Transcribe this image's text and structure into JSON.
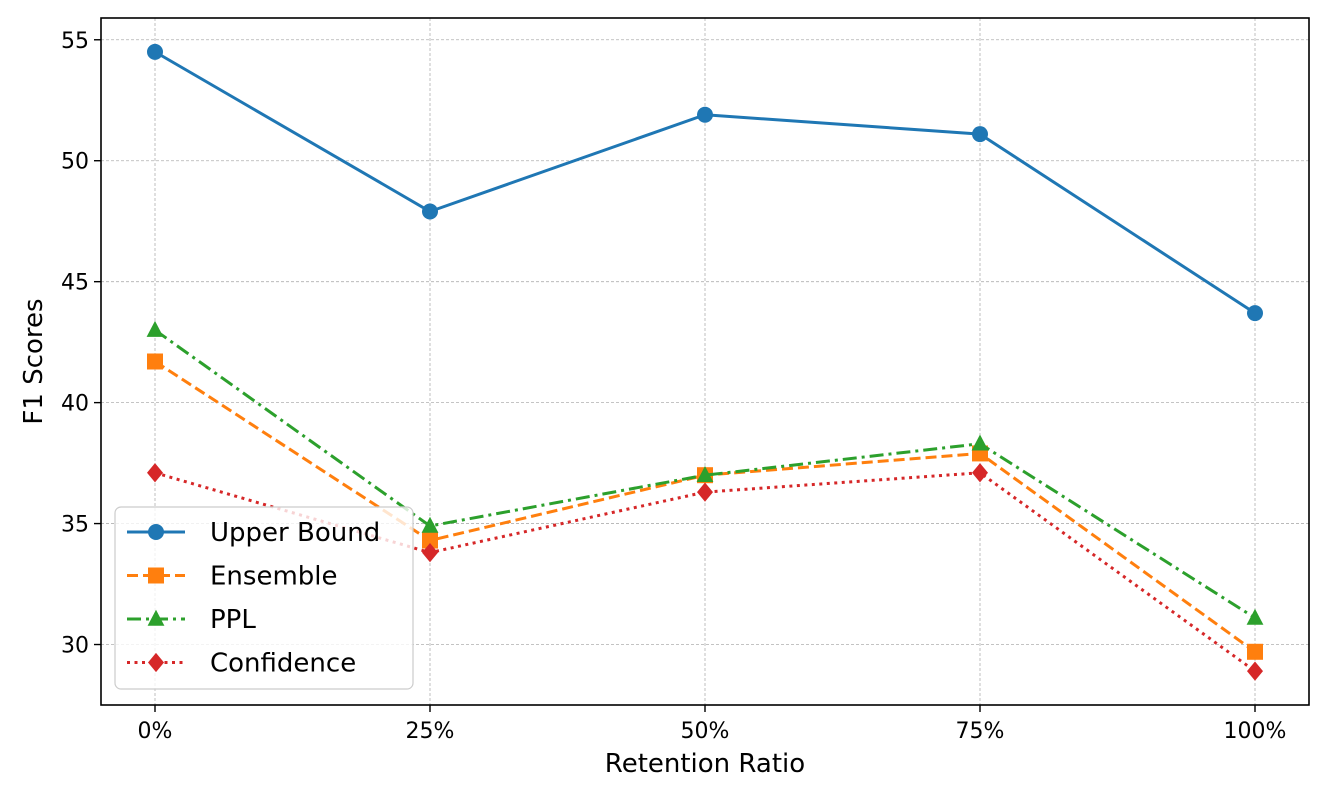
{
  "chart_data": {
    "type": "line",
    "title": "",
    "xlabel": "Retention Ratio",
    "ylabel": "F1 Scores",
    "categories": [
      "0%",
      "25%",
      "50%",
      "75%",
      "100%"
    ],
    "yticks": [
      30,
      35,
      40,
      45,
      50,
      55
    ],
    "ylim": [
      27.5,
      55.9
    ],
    "grid": true,
    "legend_position": "lower-left",
    "series": [
      {
        "name": "Upper Bound",
        "values": [
          54.5,
          47.9,
          51.9,
          51.1,
          43.7
        ],
        "color": "#1f77b4",
        "marker": "circle",
        "linestyle": "solid"
      },
      {
        "name": "Ensemble",
        "values": [
          41.7,
          34.3,
          37.0,
          37.9,
          29.7
        ],
        "color": "#ff7f0e",
        "marker": "square",
        "linestyle": "dashed"
      },
      {
        "name": "PPL",
        "values": [
          43.0,
          34.9,
          37.0,
          38.3,
          31.1
        ],
        "color": "#2ca02c",
        "marker": "triangle",
        "linestyle": "dashdot"
      },
      {
        "name": "Confidence",
        "values": [
          37.1,
          33.8,
          36.3,
          37.1,
          28.9
        ],
        "color": "#d62728",
        "marker": "diamond",
        "linestyle": "dotted"
      }
    ]
  }
}
